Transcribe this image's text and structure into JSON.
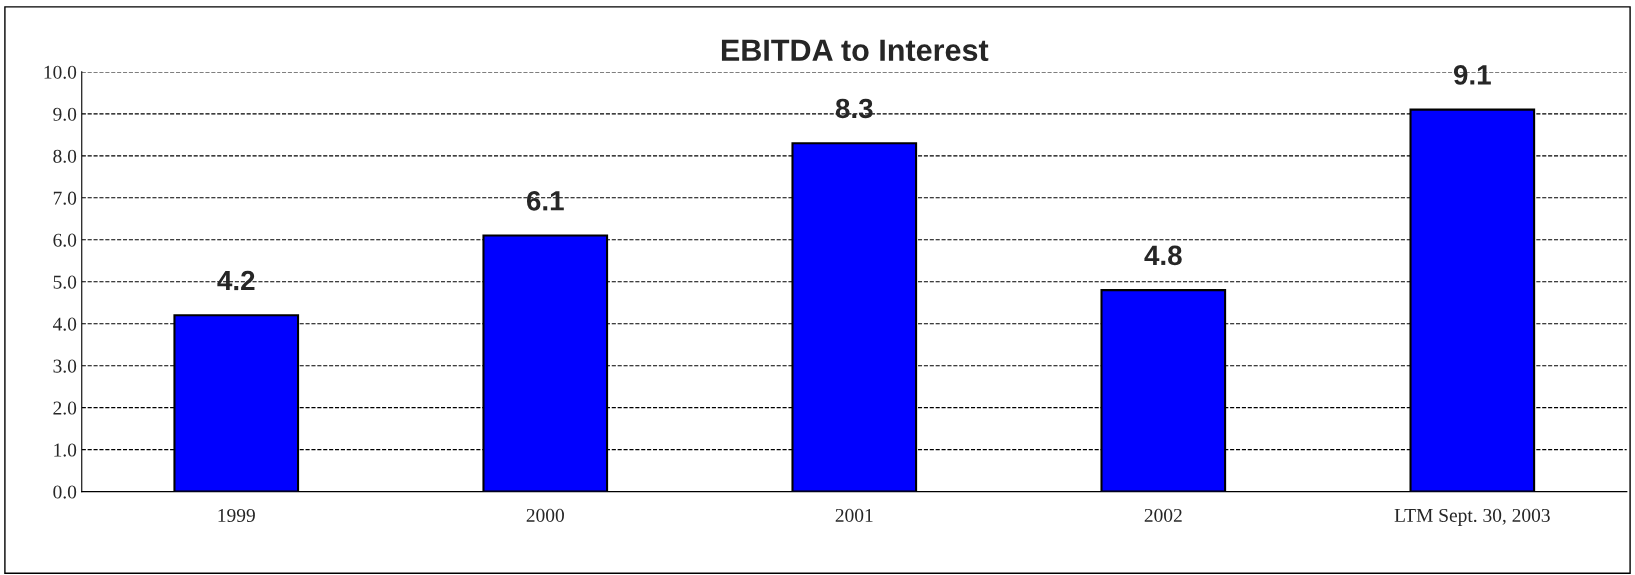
{
  "chart_data": {
    "type": "bar",
    "title": "EBITDA to Interest",
    "categories": [
      "1999",
      "2000",
      "2001",
      "2002",
      "LTM Sept. 30, 2003"
    ],
    "values": [
      4.2,
      6.1,
      8.3,
      4.8,
      9.1
    ],
    "color": "#0000ff",
    "data_labels": true,
    "ylim": [
      0,
      10
    ],
    "yticks": [
      {
        "value": 0,
        "label": "0.0"
      },
      {
        "value": 1,
        "label": "1.0"
      },
      {
        "value": 2,
        "label": "2.0"
      },
      {
        "value": 3,
        "label": "3.0"
      },
      {
        "value": 4,
        "label": "4.0"
      },
      {
        "value": 5,
        "label": "5.0"
      },
      {
        "value": 6,
        "label": "6.0"
      },
      {
        "value": 7,
        "label": "7.0"
      },
      {
        "value": 8,
        "label": "8.0"
      },
      {
        "value": 9,
        "label": "9.0"
      },
      {
        "value": 10,
        "label": "10.0"
      }
    ],
    "grid": "y",
    "line_style": "dashed"
  }
}
